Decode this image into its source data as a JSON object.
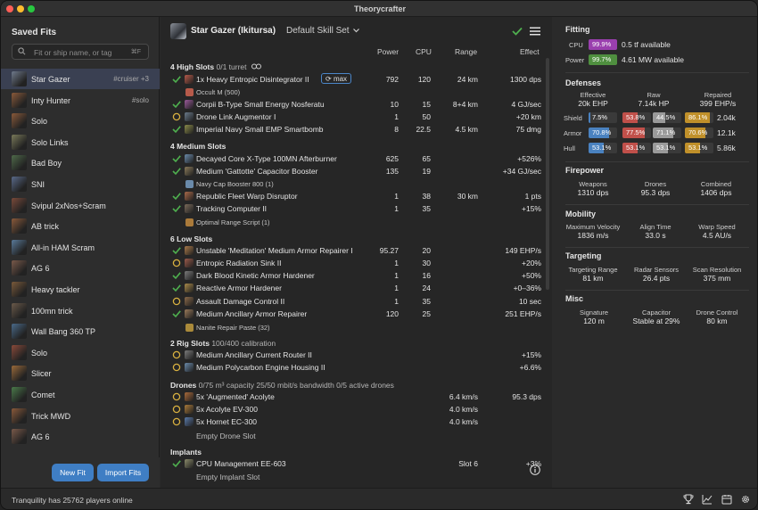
{
  "window": {
    "title": "Theorycrafter"
  },
  "sidebar": {
    "title": "Saved Fits",
    "search_placeholder": "Fit or ship name, or tag",
    "search_shortcut": "⌘F",
    "fits": [
      {
        "name": "Star Gazer",
        "tag": "#cruiser +3",
        "selected": true,
        "color": "#6f7a8c"
      },
      {
        "name": "Inty Hunter",
        "tag": "#solo",
        "color": "#8a5a3a"
      },
      {
        "name": "Solo",
        "tag": "",
        "color": "#8a5a3a"
      },
      {
        "name": "Solo Links",
        "tag": "",
        "color": "#7a7a5a"
      },
      {
        "name": "Bad Boy",
        "tag": "",
        "color": "#4f6a4a"
      },
      {
        "name": "SNI",
        "tag": "",
        "color": "#5a6a8a"
      },
      {
        "name": "Svipul 2xNos+Scram",
        "tag": "",
        "color": "#7a4a3a"
      },
      {
        "name": "AB trick",
        "tag": "",
        "color": "#8a5a3a"
      },
      {
        "name": "All-in HAM Scram",
        "tag": "",
        "color": "#5a7a9a"
      },
      {
        "name": "AG 6",
        "tag": "",
        "color": "#7a5a4a"
      },
      {
        "name": "Heavy tackler",
        "tag": "",
        "color": "#7a5a3a"
      },
      {
        "name": "100mn trick",
        "tag": "",
        "color": "#6a5a4a"
      },
      {
        "name": "Wall Bang 360 TP",
        "tag": "",
        "color": "#4a6a8a"
      },
      {
        "name": "Solo",
        "tag": "",
        "color": "#8a4a3a"
      },
      {
        "name": "Slicer",
        "tag": "",
        "color": "#9a6a3a"
      },
      {
        "name": "Comet",
        "tag": "",
        "color": "#4a7a4a"
      },
      {
        "name": "Trick MWD",
        "tag": "",
        "color": "#8a5a3a"
      },
      {
        "name": "AG 6",
        "tag": "",
        "color": "#7a5a4a"
      }
    ],
    "new_fit": "New Fit",
    "import_fits": "Import Fits"
  },
  "main": {
    "ship_name": "Star Gazer (Ikitursa)",
    "skill_set": "Default Skill Set",
    "columns": {
      "power": "Power",
      "cpu": "CPU",
      "range": "Range",
      "effect": "Effect"
    },
    "high": {
      "title": "4 High Slots",
      "sub": "0/1 turret"
    },
    "high_rows": [
      {
        "name": "1x Heavy Entropic Disintegrator II",
        "badge": "max",
        "power": "792",
        "cpu": "120",
        "range": "24 km",
        "effect": "1300 dps",
        "state": "check",
        "color": "#b65a4a"
      },
      {
        "name": "Corpii B-Type Small Energy Nosferatu",
        "power": "10",
        "cpu": "15",
        "range": "8+4 km",
        "effect": "4 GJ/sec",
        "state": "check",
        "color": "#9a5a9a"
      },
      {
        "name": "Drone Link Augmentor I",
        "power": "1",
        "cpu": "50",
        "range": "",
        "effect": "+20 km",
        "state": "circle",
        "color": "#6a7a8a"
      },
      {
        "name": "Imperial Navy Small EMP Smartbomb",
        "power": "8",
        "cpu": "22.5",
        "range": "4.5 km",
        "effect": "75 dmg",
        "state": "check",
        "color": "#8a8a4a"
      }
    ],
    "high_charge": "Occult M (500)",
    "medium": {
      "title": "4 Medium Slots"
    },
    "medium_rows": [
      {
        "name": "Decayed Core X-Type 100MN Afterburner",
        "power": "625",
        "cpu": "65",
        "range": "",
        "effect": "+526%",
        "state": "check",
        "color": "#6a8aaa"
      },
      {
        "name": "Medium 'Gattotte' Capacitor Booster",
        "power": "135",
        "cpu": "19",
        "range": "",
        "effect": "+34 GJ/sec",
        "state": "check",
        "color": "#8a7a5a"
      },
      {
        "name": "Republic Fleet Warp Disruptor",
        "power": "1",
        "cpu": "38",
        "range": "30 km",
        "effect": "1 pts",
        "state": "check",
        "color": "#aa6a4a"
      },
      {
        "name": "Tracking Computer II",
        "power": "1",
        "cpu": "35",
        "range": "",
        "effect": "+15%",
        "state": "check",
        "color": "#7a6a5a"
      }
    ],
    "medium_charge_1": "Navy Cap Booster 800 (1)",
    "medium_charge_2": "Optimal Range Script (1)",
    "low": {
      "title": "6 Low Slots"
    },
    "low_rows": [
      {
        "name": "Unstable 'Meditation' Medium Armor Repairer I",
        "power": "95.27",
        "cpu": "20",
        "range": "",
        "effect": "149 EHP/s",
        "state": "check",
        "color": "#aa7a4a"
      },
      {
        "name": "Entropic Radiation Sink II",
        "power": "1",
        "cpu": "30",
        "range": "",
        "effect": "+20%",
        "state": "circle",
        "color": "#9a5a4a"
      },
      {
        "name": "Dark Blood Kinetic Armor Hardener",
        "power": "1",
        "cpu": "16",
        "range": "",
        "effect": "+50%",
        "state": "check",
        "color": "#7a7a7a"
      },
      {
        "name": "Reactive Armor Hardener",
        "power": "1",
        "cpu": "24",
        "range": "",
        "effect": "+0–36%",
        "state": "check",
        "color": "#aa8a4a"
      },
      {
        "name": "Assault Damage Control II",
        "power": "1",
        "cpu": "35",
        "range": "",
        "effect": "10 sec",
        "state": "circle",
        "color": "#8a6a4a"
      },
      {
        "name": "Medium Ancillary Armor Repairer",
        "power": "120",
        "cpu": "25",
        "range": "",
        "effect": "251 EHP/s",
        "state": "check",
        "color": "#9a7a5a"
      }
    ],
    "low_charge": "Nanite Repair Paste (32)",
    "rig": {
      "title": "2 Rig Slots",
      "sub": "100/400 calibration"
    },
    "rig_rows": [
      {
        "name": "Medium Ancillary Current Router II",
        "effect": "+15%",
        "state": "circle",
        "color": "#7a7a7a"
      },
      {
        "name": "Medium Polycarbon Engine Housing II",
        "effect": "+6.6%",
        "state": "circle",
        "color": "#6a8aaa"
      }
    ],
    "drones": {
      "title": "Drones",
      "sub": "0/75 m³ capacity  25/50 mbit/s bandwidth  0/5 active drones"
    },
    "drone_rows": [
      {
        "name": "5x 'Augmented' Acolyte",
        "range": "6.4 km/s",
        "effect": "95.3 dps",
        "state": "circle",
        "color": "#aa6a3a"
      },
      {
        "name": "5x Acolyte EV-300",
        "range": "4.0 km/s",
        "effect": "",
        "state": "circle",
        "color": "#aa7a3a"
      },
      {
        "name": "5x Hornet EC-300",
        "range": "4.0 km/s",
        "effect": "",
        "state": "circle",
        "color": "#5a7aaa"
      }
    ],
    "drone_empty": "Empty Drone Slot",
    "implants": {
      "title": "Implants"
    },
    "implant_rows": [
      {
        "name": "CPU Management EE-603",
        "range": "Slot 6",
        "effect": "+3%",
        "state": "check",
        "color": "#8a8a6a"
      }
    ],
    "implant_empty": "Empty Implant Slot"
  },
  "fitting": {
    "title": "Fitting",
    "cpu": {
      "label": "CPU",
      "pct": "99.9%",
      "text": "0.5 tf available",
      "color": "#9a3fae"
    },
    "power": {
      "label": "Power",
      "pct": "99.7%",
      "text": "4.61 MW available",
      "color": "#4f8f3f"
    }
  },
  "defenses": {
    "title": "Defenses",
    "effective": {
      "label": "Effective",
      "value": "20k EHP"
    },
    "raw": {
      "label": "Raw",
      "value": "7.14k HP"
    },
    "repaired": {
      "label": "Repaired",
      "value": "399 EHP/s"
    },
    "rows": [
      {
        "label": "Shield",
        "em": "7.5%",
        "th": "53.8%",
        "kin": "44.5%",
        "exp": "86.1%",
        "total": "2.04k"
      },
      {
        "label": "Armor",
        "em": "70.8%",
        "th": "77.5%",
        "kin": "71.1%",
        "exp": "70.6%",
        "total": "12.1k"
      },
      {
        "label": "Hull",
        "em": "53.1%",
        "th": "53.1%",
        "kin": "53.1%",
        "exp": "53.1%",
        "total": "5.86k"
      }
    ],
    "colors": {
      "em": "#4a82c0",
      "th": "#c0504a",
      "kin": "#9a9a9a",
      "exp": "#c0902a"
    }
  },
  "firepower": {
    "title": "Firepower",
    "weapons": {
      "label": "Weapons",
      "value": "1310 dps"
    },
    "drones": {
      "label": "Drones",
      "value": "95.3 dps"
    },
    "combined": {
      "label": "Combined",
      "value": "1406 dps"
    }
  },
  "mobility": {
    "title": "Mobility",
    "max_velocity": {
      "label": "Maximum Velocity",
      "value": "1836 m/s"
    },
    "align_time": {
      "label": "Align Time",
      "value": "33.0 s"
    },
    "warp_speed": {
      "label": "Warp Speed",
      "value": "4.5 AU/s"
    }
  },
  "targeting": {
    "title": "Targeting",
    "range": {
      "label": "Targeting Range",
      "value": "81 km"
    },
    "sensors": {
      "label": "Radar Sensors",
      "value": "26.4 pts"
    },
    "scan": {
      "label": "Scan Resolution",
      "value": "375 mm"
    }
  },
  "misc": {
    "title": "Misc",
    "signature": {
      "label": "Signature",
      "value": "120 m"
    },
    "capacitor": {
      "label": "Capacitor",
      "value": "Stable at 29%"
    },
    "drone_control": {
      "label": "Drone Control",
      "value": "80 km"
    }
  },
  "status": {
    "text": "Tranquility has 25762 players online"
  }
}
